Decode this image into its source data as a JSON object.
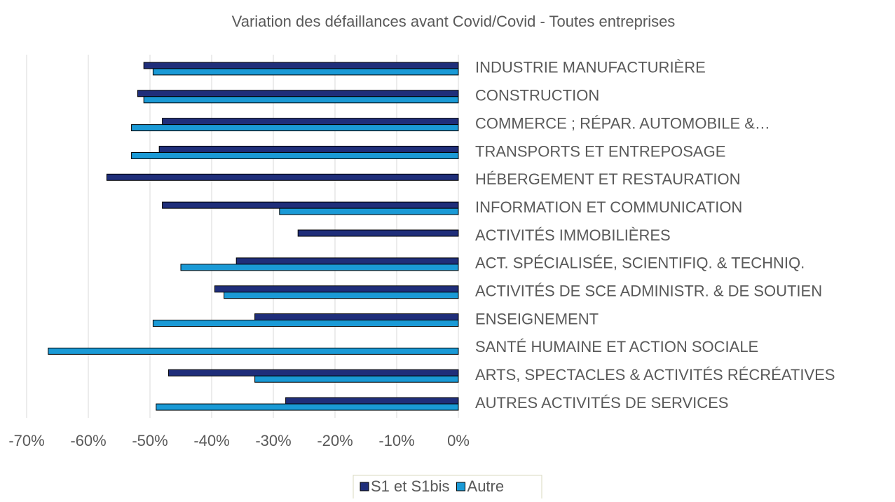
{
  "chart_data": {
    "type": "hbar",
    "title": "Variation des défaillances avant Covid/Covid - Toutes entreprises",
    "categories": [
      "INDUSTRIE MANUFACTURIÈRE",
      "CONSTRUCTION",
      "COMMERCE ; RÉPAR. AUTOMOBILE &…",
      "TRANSPORTS ET ENTREPOSAGE",
      "HÉBERGEMENT ET RESTAURATION",
      "INFORMATION ET COMMUNICATION",
      "ACTIVITÉS IMMOBILIÈRES",
      "ACT. SPÉCIALISÉE, SCIENTIFIQ. & TECHNIQ.",
      "ACTIVITÉS DE SCE ADMINISTR. & DE SOUTIEN",
      "ENSEIGNEMENT",
      "SANTÉ HUMAINE ET ACTION SOCIALE",
      "ARTS, SPECTACLES & ACTIVITÉS RÉCRÉATIVES",
      "AUTRES ACTIVITÉS DE SERVICES"
    ],
    "series": [
      {
        "name": "S1 et S1bis",
        "color": "#1f2e7a",
        "values": [
          -51,
          -52,
          -48,
          -48.5,
          -57,
          -48,
          -26,
          -36,
          -39.5,
          -33,
          null,
          -47,
          -28
        ]
      },
      {
        "name": "Autre",
        "color": "#1a9ad6",
        "values": [
          -49.5,
          -51,
          -53,
          -53,
          null,
          -29,
          null,
          -45,
          -38,
          -49.5,
          -66.5,
          -33,
          -49
        ]
      }
    ],
    "xlim": [
      -70,
      0
    ],
    "xticks": [
      {
        "value": -70,
        "label": "-70%"
      },
      {
        "value": -60,
        "label": "-60%"
      },
      {
        "value": -50,
        "label": "-50%"
      },
      {
        "value": -40,
        "label": "-40%"
      },
      {
        "value": -30,
        "label": "-30%"
      },
      {
        "value": -20,
        "label": "-20%"
      },
      {
        "value": -10,
        "label": "-10%"
      },
      {
        "value": 0,
        "label": "0%"
      }
    ],
    "grid": true,
    "legend": "bottom"
  }
}
